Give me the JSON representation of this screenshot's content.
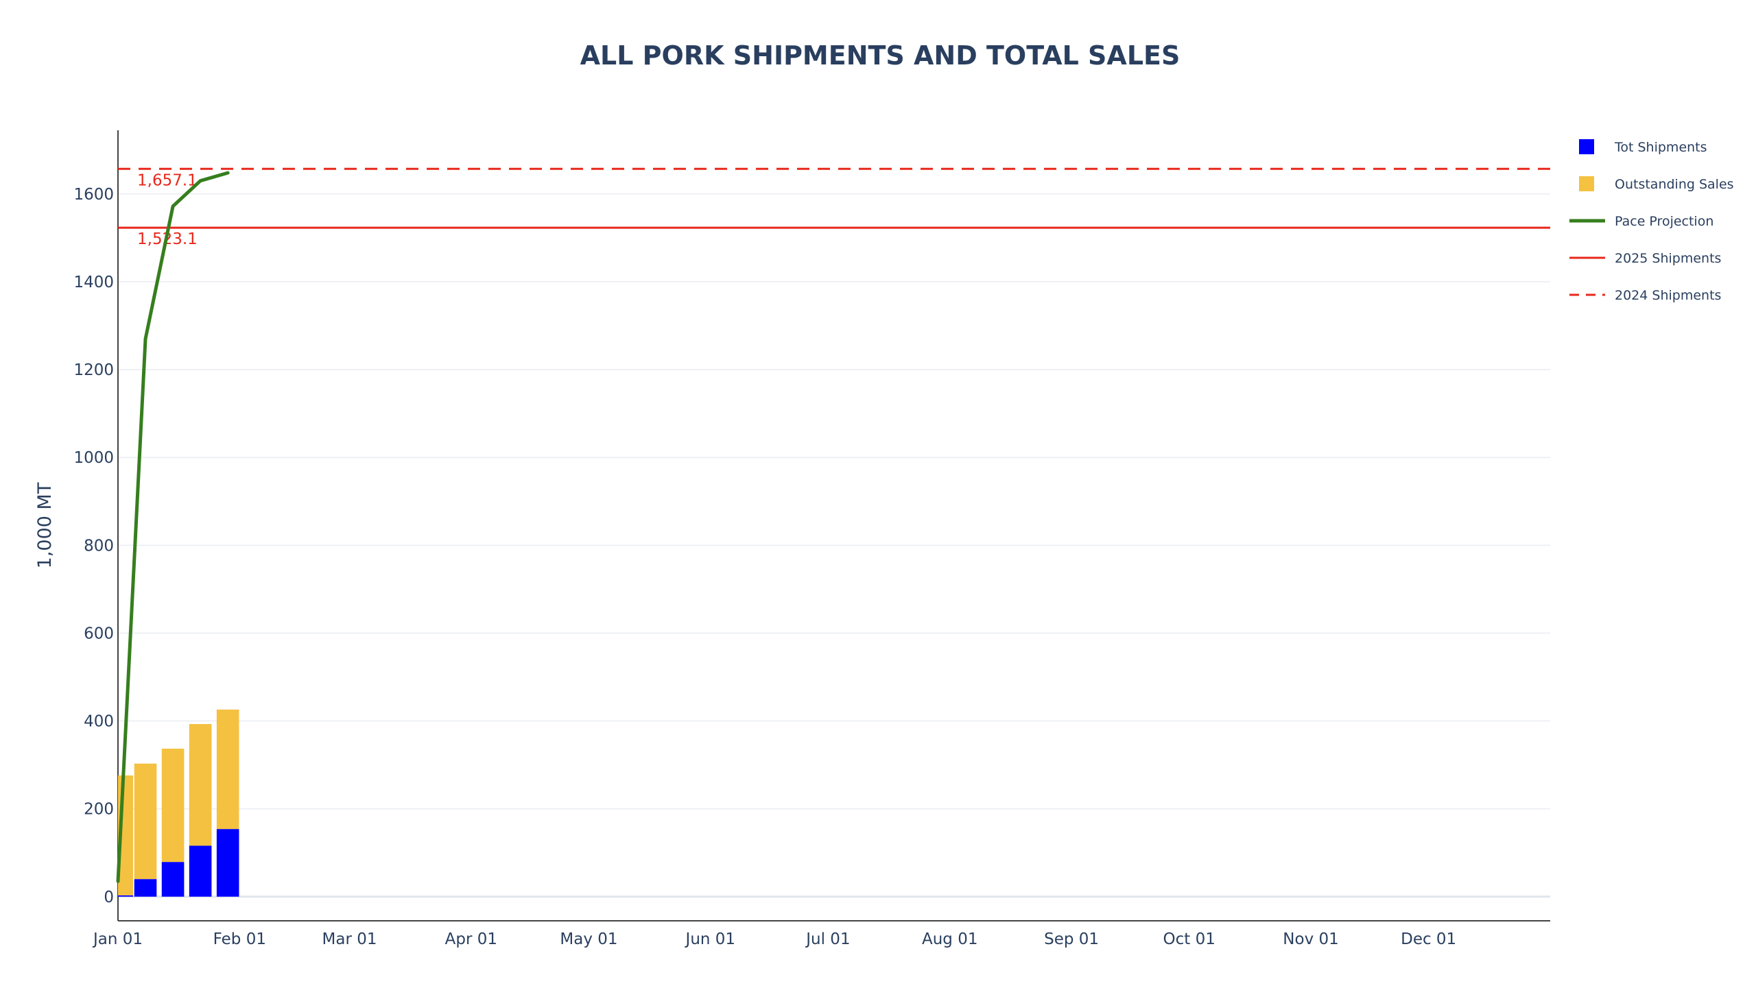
{
  "chart_data": {
    "type": "bar",
    "title": "ALL PORK SHIPMENTS AND TOTAL SALES",
    "ylabel": "1,000 MT",
    "xlabel": "",
    "ylim": [
      -55,
      1745
    ],
    "yticks": [
      0,
      200,
      400,
      600,
      800,
      1000,
      1200,
      1400,
      1600
    ],
    "x_range": [
      "2025-01-01",
      "2025-12-31"
    ],
    "x_ticks": [
      {
        "date": "2025-01-01",
        "label": "Jan 01"
      },
      {
        "date": "2025-02-01",
        "label": "Feb 01"
      },
      {
        "date": "2025-03-01",
        "label": "Mar 01"
      },
      {
        "date": "2025-04-01",
        "label": "Apr 01"
      },
      {
        "date": "2025-05-01",
        "label": "May 01"
      },
      {
        "date": "2025-06-01",
        "label": "Jun 01"
      },
      {
        "date": "2025-07-01",
        "label": "Jul 01"
      },
      {
        "date": "2025-08-01",
        "label": "Aug 01"
      },
      {
        "date": "2025-09-01",
        "label": "Sep 01"
      },
      {
        "date": "2025-10-01",
        "label": "Oct 01"
      },
      {
        "date": "2025-11-01",
        "label": "Nov 01"
      },
      {
        "date": "2025-12-01",
        "label": "Dec 01"
      }
    ],
    "stacked_bars": {
      "x": [
        "2025-01-02",
        "2025-01-08",
        "2025-01-15",
        "2025-01-22",
        "2025-01-29"
      ],
      "series": [
        {
          "name": "Tot Shipments",
          "color": "#0000ff",
          "values": [
            3,
            40,
            79,
            116,
            154
          ]
        },
        {
          "name": "Outstanding Sales",
          "color": "#f4c141",
          "values": [
            273,
            263,
            258,
            277,
            272
          ]
        }
      ]
    },
    "line_series": [
      {
        "name": "Pace Projection",
        "color": "#367e1e",
        "x": [
          "2025-01-01",
          "2025-01-08",
          "2025-01-15",
          "2025-01-22",
          "2025-01-29"
        ],
        "y": [
          35,
          1270,
          1572,
          1630,
          1648
        ]
      }
    ],
    "reference_lines": [
      {
        "name": "2025 Shipments",
        "value": 1523.1,
        "label": "1,523.1",
        "color": "#e8281c",
        "dash": "solid"
      },
      {
        "name": "2024 Shipments",
        "value": 1657.1,
        "label": "1,657.1",
        "color": "#e8281c",
        "dash": "dashed"
      }
    ],
    "legend": {
      "placement": "right",
      "entries": [
        {
          "name": "Tot Shipments",
          "kind": "square",
          "color": "#0000ff"
        },
        {
          "name": "Outstanding Sales",
          "kind": "square",
          "color": "#f4c141"
        },
        {
          "name": "Pace Projection",
          "kind": "line",
          "color": "#367e1e"
        },
        {
          "name": "2025 Shipments",
          "kind": "line",
          "color": "#e8281c"
        },
        {
          "name": "2024 Shipments",
          "kind": "dash",
          "color": "#e8281c"
        }
      ]
    },
    "grid": true
  }
}
